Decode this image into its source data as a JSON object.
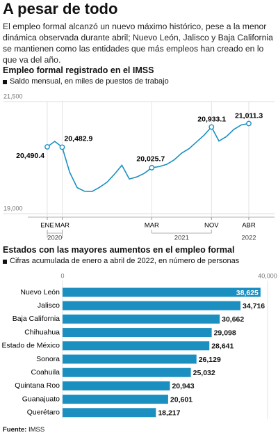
{
  "header": {
    "title": "A pesar de todo",
    "text": "El empleo formal alcanzó un nuevo máximo histórico, pese a la menor dinámica observada durante abril; Nuevo León, Jalisco y Baja California se mantienen como las entidades que más empleos han creado en lo que va del año."
  },
  "chart_data": [
    {
      "type": "line",
      "title": "Empleo formal registrado en el IMSS",
      "subtitle": "Saldo mensual, en miles de puestos de trabajo",
      "categories": [
        "ENE",
        null,
        "MAR",
        null,
        null,
        null,
        null,
        null,
        null,
        null,
        null,
        null,
        null,
        null,
        "MAR",
        null,
        null,
        null,
        null,
        null,
        null,
        null,
        "NOV",
        null,
        null,
        null,
        null,
        "ABR"
      ],
      "groups": [
        "2020",
        "2021",
        "2022"
      ],
      "series": [
        {
          "name": "Empleo formal",
          "color": "#1a8fc0",
          "values": [
            20490.4,
            20613,
            20482.9,
            19926,
            19582,
            19499,
            19495,
            19587,
            19700,
            19880,
            20080,
            19773,
            19820,
            19900,
            20025.7,
            20050,
            20100,
            20200,
            20350,
            20450,
            20600,
            20750,
            20933.1,
            20620,
            20720,
            20880,
            20980,
            21011.3
          ],
          "value_labels": [
            "20,490.4",
            null,
            "20,482.9",
            null,
            null,
            null,
            null,
            null,
            null,
            null,
            null,
            null,
            null,
            null,
            "20,025.7",
            null,
            null,
            null,
            null,
            null,
            null,
            null,
            "20,933.1",
            null,
            null,
            null,
            null,
            "21,011.3"
          ]
        }
      ],
      "ylim": [
        19000,
        21500
      ],
      "yticks": [
        {
          "value": 19000,
          "label": "19,000"
        },
        {
          "value": 21500,
          "label": "21,500"
        }
      ],
      "grid": true
    },
    {
      "type": "barh",
      "title": "Estados con las mayores aumentos en el empleo formal",
      "subtitle": "Cifras acumulada de enero a abril de 2022, en número de personas",
      "categories": [
        "Nuevo León",
        "Jalisco",
        "Baja California",
        "Chihuahua",
        "Estado de México",
        "Sonora",
        "Coahuila",
        "Quintana Roo",
        "Guanajuato",
        "Querétaro"
      ],
      "values": [
        38625,
        34716,
        30662,
        29098,
        28641,
        26129,
        25032,
        20943,
        20601,
        18217
      ],
      "value_labels": [
        "38,625",
        "34,716",
        "30,662",
        "29,098",
        "28,641",
        "26,129",
        "25,032",
        "20,943",
        "20,601",
        "18,217"
      ],
      "color": "#1a8fc0",
      "xlim": [
        0,
        40000
      ],
      "xticks": [
        0,
        {
          "value": 40000,
          "label": "40,000"
        }
      ]
    }
  ],
  "source": {
    "label": "Fuente:",
    "text": "IMSS"
  }
}
